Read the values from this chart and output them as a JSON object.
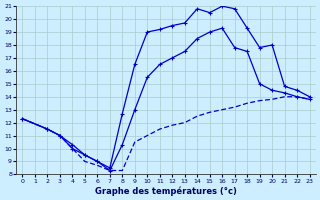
{
  "title": "Graphe des températures (°c)",
  "bg_color": "#cceeff",
  "line_color": "#0000cc",
  "xlim": [
    -0.5,
    23.5
  ],
  "ylim": [
    8,
    21
  ],
  "xticks": [
    0,
    1,
    2,
    3,
    4,
    5,
    6,
    7,
    8,
    9,
    10,
    11,
    12,
    13,
    14,
    15,
    16,
    17,
    18,
    19,
    20,
    21,
    22,
    23
  ],
  "yticks": [
    8,
    9,
    10,
    11,
    12,
    13,
    14,
    15,
    16,
    17,
    18,
    19,
    20,
    21
  ],
  "upper_x": [
    0,
    2,
    3,
    4,
    5,
    6,
    7,
    8,
    9,
    10,
    11,
    12,
    13,
    14,
    15,
    16,
    17,
    18,
    19,
    20,
    21,
    22,
    23
  ],
  "upper_y": [
    12.3,
    11.5,
    11.0,
    10.3,
    9.5,
    9.0,
    8.5,
    12.7,
    16.5,
    19.0,
    19.2,
    19.5,
    19.7,
    20.8,
    20.5,
    21.0,
    20.8,
    19.3,
    17.8,
    18.0,
    14.8,
    14.5,
    14.0
  ],
  "middle_x": [
    0,
    2,
    3,
    4,
    5,
    6,
    7,
    8,
    9,
    10,
    11,
    12,
    13,
    14,
    15,
    16,
    17,
    18,
    19,
    20,
    21,
    22,
    23
  ],
  "middle_y": [
    12.3,
    11.5,
    11.0,
    10.0,
    9.5,
    9.0,
    8.3,
    10.3,
    13.0,
    15.5,
    16.5,
    17.0,
    17.5,
    18.5,
    19.0,
    19.3,
    17.8,
    17.5,
    15.0,
    14.5,
    14.3,
    14.0,
    13.8
  ],
  "lower_x": [
    0,
    2,
    3,
    4,
    5,
    6,
    7,
    8,
    9,
    10,
    11,
    12,
    13,
    14,
    15,
    16,
    17,
    18,
    19,
    20,
    21,
    22,
    23
  ],
  "lower_y": [
    12.3,
    11.5,
    11.0,
    10.0,
    9.0,
    8.7,
    8.3,
    8.3,
    10.5,
    11.0,
    11.5,
    11.8,
    12.0,
    12.5,
    12.8,
    13.0,
    13.2,
    13.5,
    13.7,
    13.8,
    14.0,
    14.0,
    13.8
  ]
}
